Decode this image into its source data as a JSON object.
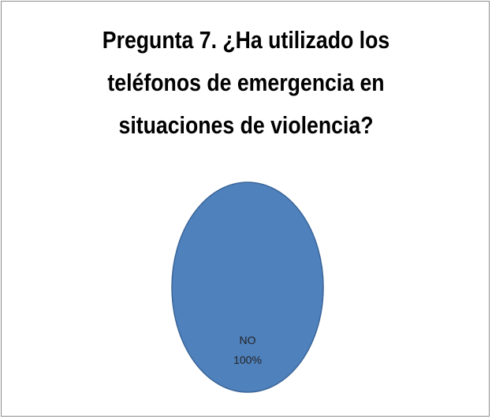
{
  "chart_data": {
    "type": "pie",
    "title": "Pregunta 7. ¿Ha utilizado los teléfonos de emergencia en situaciones de violencia?",
    "categories": [
      "NO"
    ],
    "values": [
      100
    ],
    "slice_labels": [
      {
        "category": "NO",
        "percent": "100%"
      }
    ],
    "colors": [
      "#4f81bd"
    ],
    "legend": "none"
  }
}
